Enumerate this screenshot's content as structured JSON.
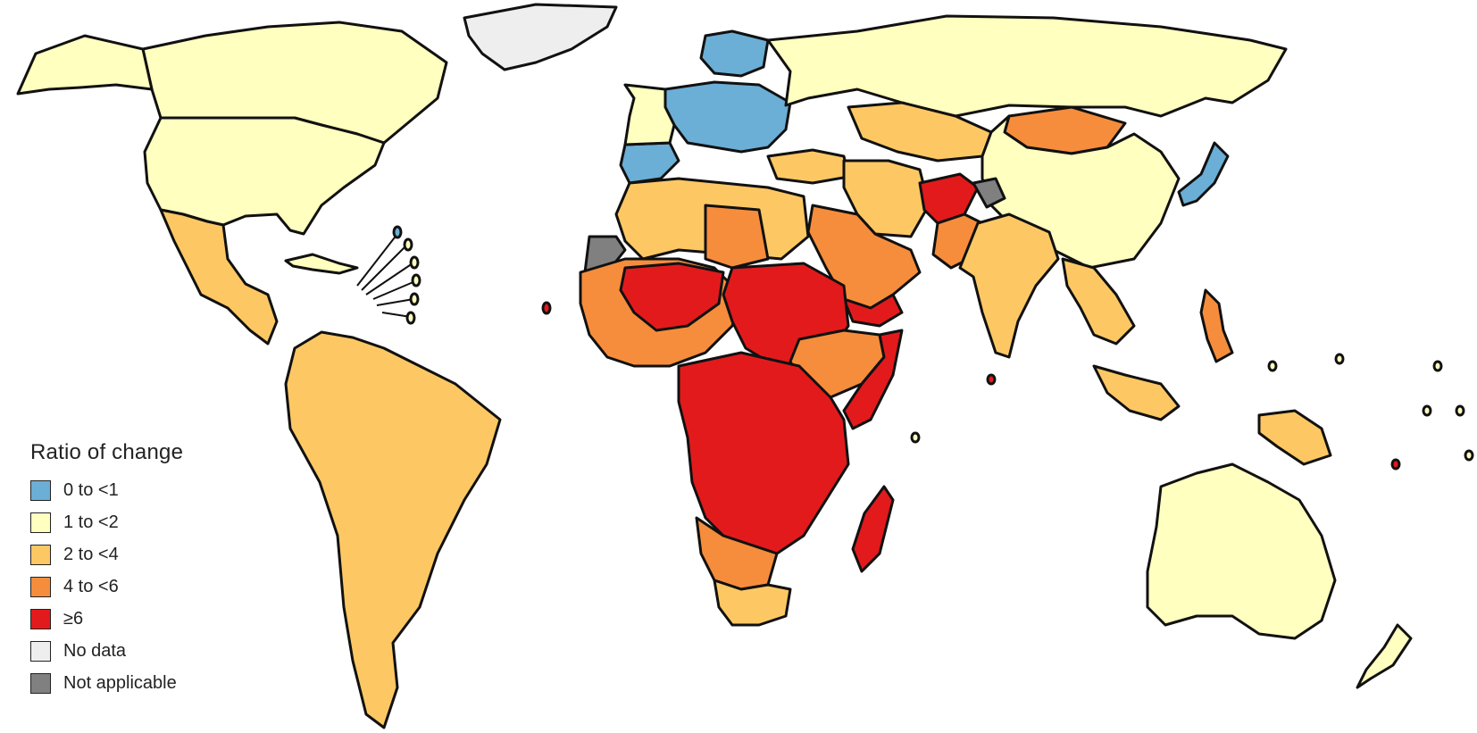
{
  "legend": {
    "title": "Ratio of change",
    "items": [
      {
        "label": "0 to <1",
        "color": "#6baed6"
      },
      {
        "label": "1 to <2",
        "color": "#ffffbf"
      },
      {
        "label": "2 to <4",
        "color": "#fdc864"
      },
      {
        "label": "4 to <6",
        "color": "#f68d3c"
      },
      {
        "label": "≥6",
        "color": "#e31a1c"
      },
      {
        "label": "No data",
        "color": "#eeeeee"
      },
      {
        "label": "Not applicable",
        "color": "#808080"
      }
    ]
  }
}
